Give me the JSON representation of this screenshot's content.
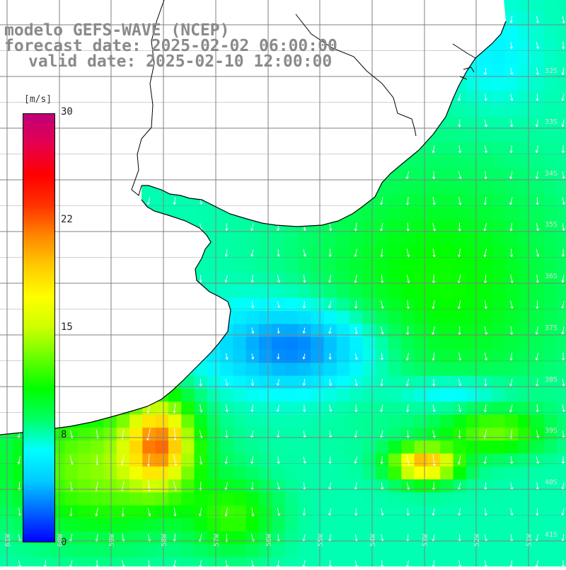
{
  "title": {
    "line1": "modelo GEFS-WAVE (NCEP)",
    "line2": "forecast date: 2025-02-02 06:00:00",
    "line3": "valid date: 2025-02-10 12:00:00"
  },
  "colorbar": {
    "unit": "[m/s]",
    "ticks": [
      "30",
      "22",
      "15",
      "8",
      "0"
    ],
    "tick_values": [
      30,
      22,
      15,
      8,
      0
    ],
    "colors": [
      "#0000ff",
      "#0066ff",
      "#00ccff",
      "#00ffff",
      "#00ff66",
      "#00ff00",
      "#66ff00",
      "#ccff00",
      "#ffff00",
      "#ffcc00",
      "#ff8800",
      "#ff3300",
      "#ff0000",
      "#e6004d",
      "#c0007a"
    ]
  },
  "map": {
    "land_color": "#ffffff",
    "grid_color": "#808080",
    "coast_color": "#000000",
    "vector_color": "#ffffff",
    "lat_labels": [
      "32S",
      "33S",
      "34S",
      "35S",
      "36S",
      "37S",
      "38S",
      "39S",
      "40S",
      "41S"
    ],
    "lon_labels": [
      "61W",
      "60W",
      "59W",
      "58W",
      "57W",
      "56W",
      "55W",
      "54W",
      "53W",
      "52W",
      "51W"
    ],
    "wind_field_pattern": {
      "north_nearshore_mps": 6,
      "central_calm_mps": 2,
      "east_offshore_mps": 11,
      "south_coast_max_mps": 19,
      "southeast_max_mps": 20,
      "prevailing_direction": "southward"
    }
  }
}
